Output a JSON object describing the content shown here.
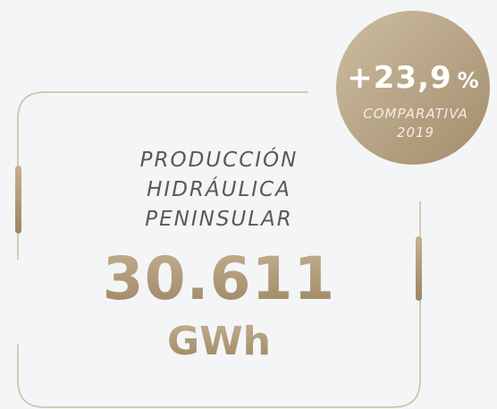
{
  "badge": {
    "value": "+23,9",
    "unit": "%",
    "caption": [
      "COMPARATIVA",
      "2019"
    ]
  },
  "main": {
    "title": [
      "PRODUCCIÓN",
      "HIDRÁULICA",
      "PENINSULAR"
    ],
    "value": "30.611",
    "unit": "GWh"
  }
}
